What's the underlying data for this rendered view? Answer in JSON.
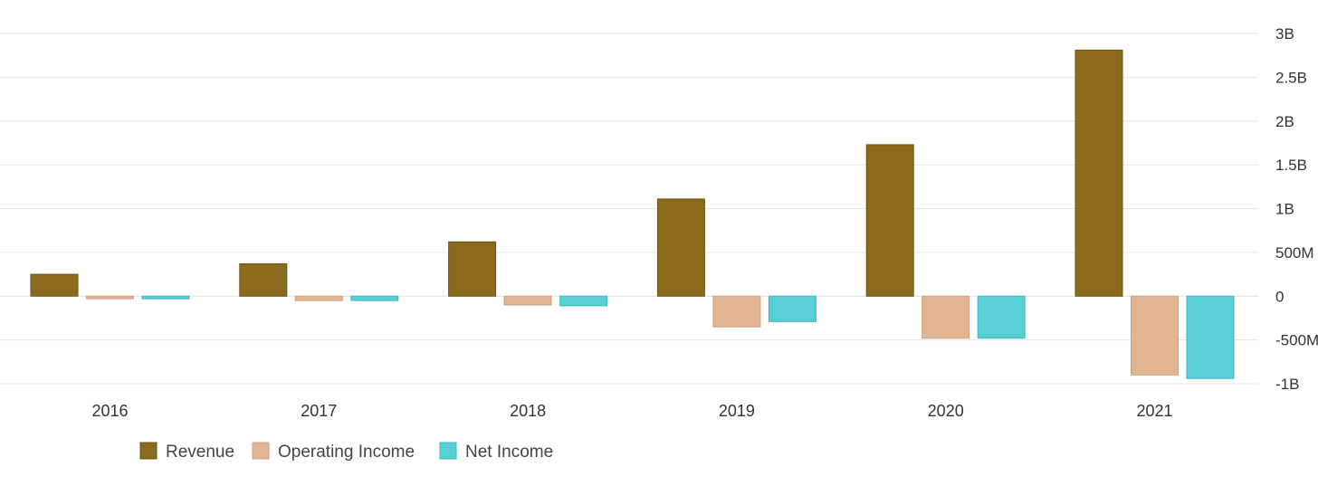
{
  "chart_data": {
    "type": "bar",
    "categories": [
      "2016",
      "2017",
      "2018",
      "2019",
      "2020",
      "2021"
    ],
    "series": [
      {
        "name": "Revenue",
        "values": [
          250,
          370,
          620,
          1110,
          1730,
          2810
        ],
        "color": "#8b6a1c",
        "stroke": "#6e5213"
      },
      {
        "name": "Operating Income",
        "values": [
          -30,
          -50,
          -100,
          -350,
          -480,
          -900
        ],
        "color": "#e1b594",
        "stroke": "#cfa07c"
      },
      {
        "name": "Net Income",
        "values": [
          -30,
          -50,
          -110,
          -290,
          -480,
          -940
        ],
        "color": "#57cfd4",
        "stroke": "#3fb8bd"
      }
    ],
    "unit": "USD",
    "ylim": [
      -1000,
      3000
    ],
    "yticks": [
      3000,
      2500,
      2000,
      1500,
      1000,
      500,
      0,
      -500,
      -1000
    ],
    "ytick_labels": [
      "3B",
      "2.5B",
      "2B",
      "1.5B",
      "1B",
      "500M",
      "0",
      "-500M",
      "-1B"
    ],
    "y_axis_side": "right",
    "grid": true,
    "legend_position": "bottom-left"
  }
}
